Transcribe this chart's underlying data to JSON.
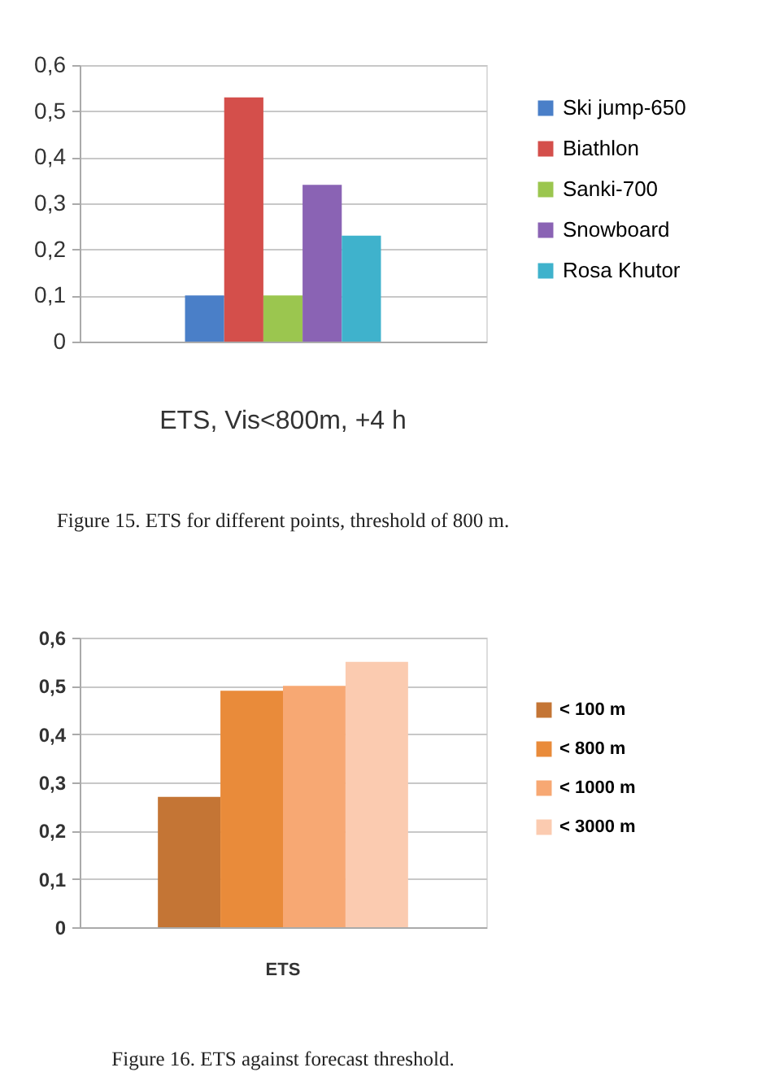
{
  "chart_data": [
    {
      "type": "bar",
      "categories": [
        "ETS, Vis<800m, +4 h"
      ],
      "series": [
        {
          "name": "Ski jump-650",
          "color": "#4a7fc8",
          "values": [
            0.1
          ]
        },
        {
          "name": "Biathlon",
          "color": "#d44f4b",
          "values": [
            0.53
          ]
        },
        {
          "name": "Sanki-700",
          "color": "#9bc64f",
          "values": [
            0.1
          ]
        },
        {
          "name": "Snowboard",
          "color": "#8a63b4",
          "values": [
            0.34
          ]
        },
        {
          "name": "Rosa Khutor",
          "color": "#3fb2cc",
          "values": [
            0.23
          ]
        }
      ],
      "ylim": [
        0,
        0.6
      ],
      "yticks": [
        0,
        {
          "value": 0.1,
          "label": "0,1"
        },
        {
          "value": 0.2,
          "label": "0,2"
        },
        {
          "value": 0.3,
          "label": "0,3"
        },
        {
          "value": 0.4,
          "label": "0,4"
        },
        {
          "value": 0.5,
          "label": "0,5"
        },
        {
          "value": 0.6,
          "label": "0,6"
        }
      ],
      "grid": "y",
      "legend": "right",
      "annotations": [
        "Figure 15. ETS for different points, threshold of 800 m."
      ]
    },
    {
      "type": "bar",
      "categories": [
        "ETS"
      ],
      "series": [
        {
          "name": "< 100 m",
          "color": "#c47535",
          "values": [
            0.27
          ]
        },
        {
          "name": "< 800 m",
          "color": "#e98b3a",
          "values": [
            0.49
          ]
        },
        {
          "name": "< 1000 m",
          "color": "#f7a873",
          "values": [
            0.5
          ]
        },
        {
          "name": "< 3000 m",
          "color": "#fbcbb0",
          "values": [
            0.55
          ]
        }
      ],
      "ylim": [
        0,
        0.6
      ],
      "yticks": [
        0,
        {
          "value": 0.1,
          "label": "0,1"
        },
        {
          "value": 0.2,
          "label": "0,2"
        },
        {
          "value": 0.3,
          "label": "0,3"
        },
        {
          "value": 0.4,
          "label": "0,4"
        },
        {
          "value": 0.5,
          "label": "0,5"
        },
        {
          "value": 0.6,
          "label": "0,6"
        }
      ],
      "grid": "y",
      "legend": "right",
      "annotations": [
        "Figure 16. ETS against forecast threshold."
      ]
    }
  ]
}
